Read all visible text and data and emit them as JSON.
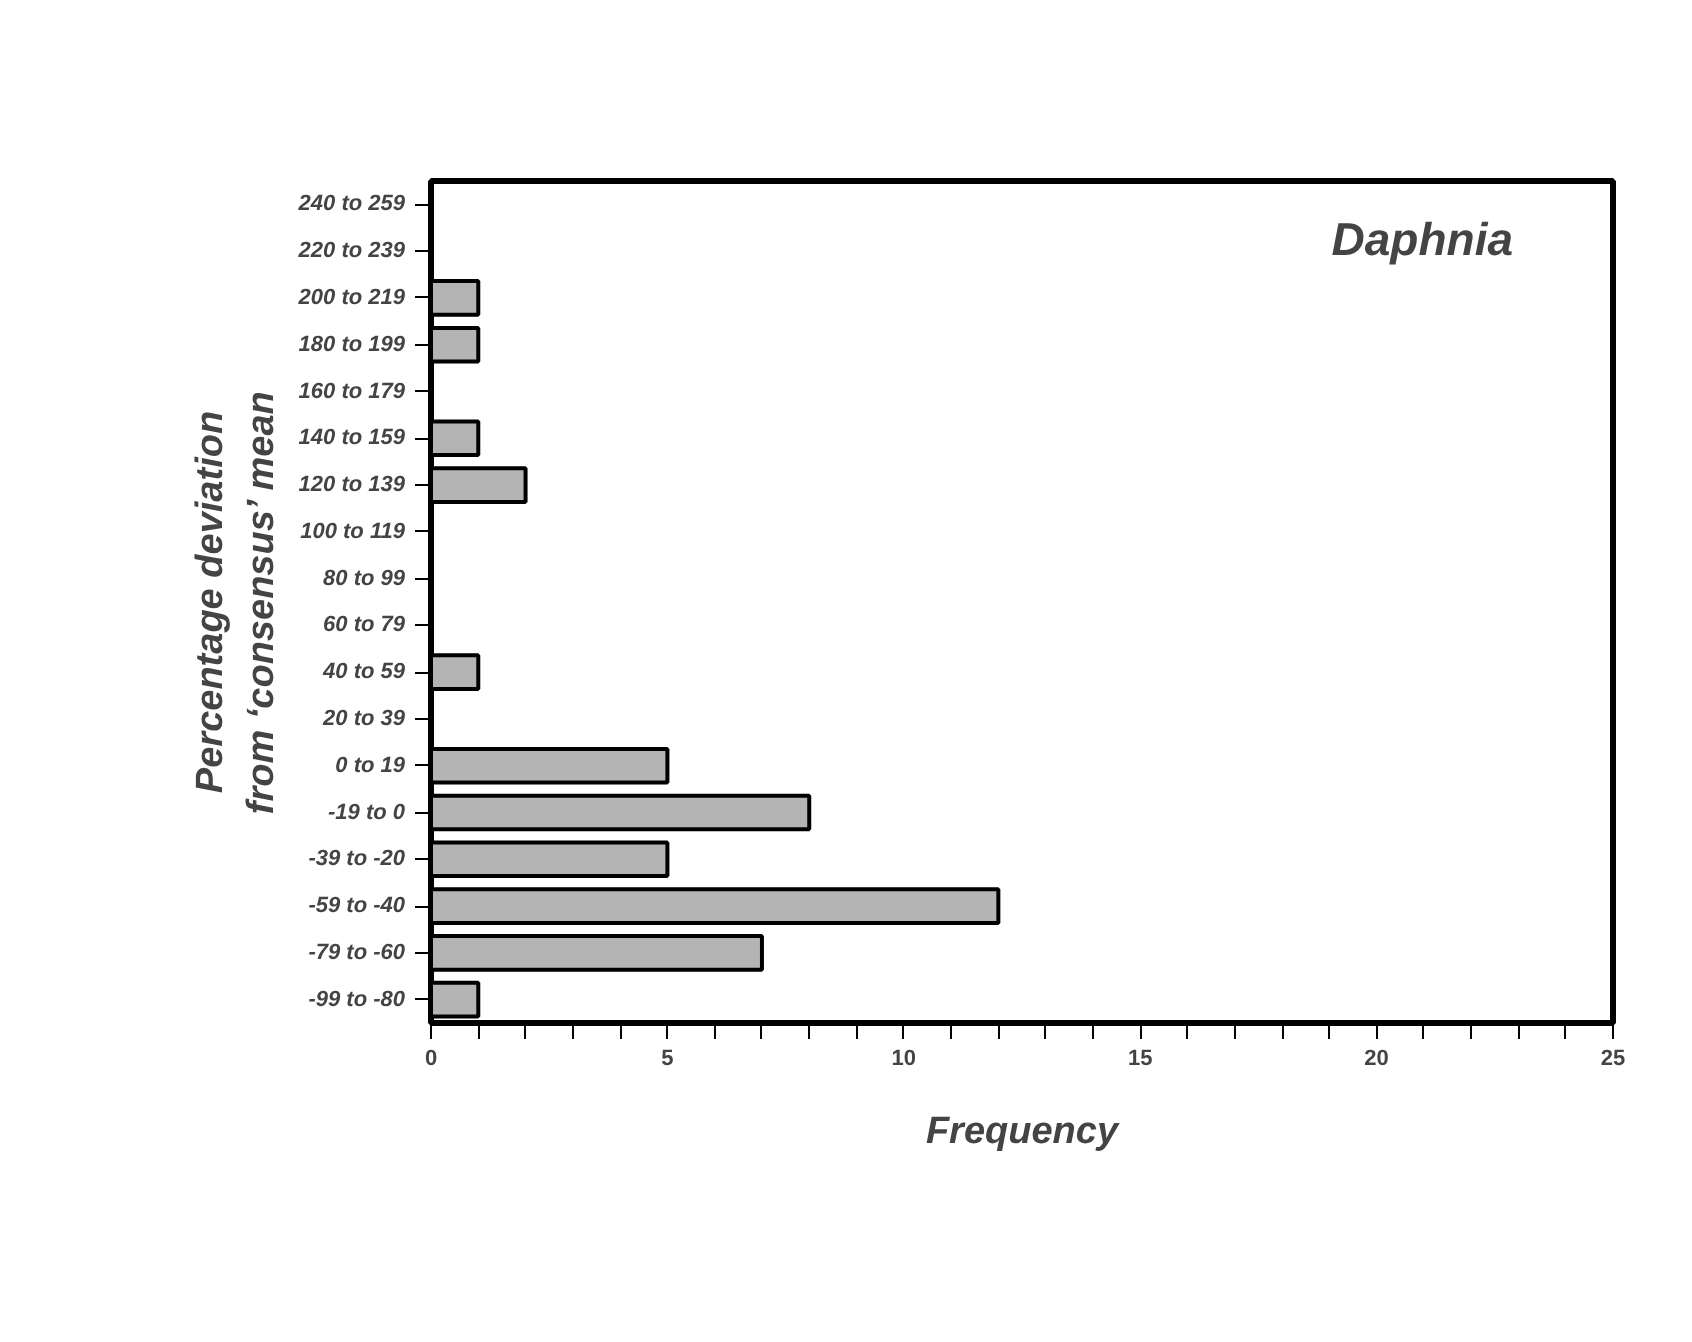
{
  "chart_data": {
    "type": "bar",
    "orientation": "horizontal",
    "xlabel": "Frequency",
    "ylabel": "Percentage deviation\nfrom ‘consensus’ mean",
    "annotations": [
      "Daphnia"
    ],
    "categories": [
      "240 to 259",
      "220 to 239",
      "200 to 219",
      "180 to 199",
      "160 to 179",
      "140 to 159",
      "120 to 139",
      "100 to 119",
      "80 to 99",
      "60 to 79",
      "40 to 59",
      "20 to 39",
      "0 to 19",
      "-19 to 0",
      "-39 to -20",
      "-59 to -40",
      "-79 to -60",
      "-99 to -80"
    ],
    "values": [
      0,
      0,
      1,
      1,
      0,
      1,
      2,
      0,
      0,
      0,
      1,
      0,
      5,
      8,
      5,
      12,
      7,
      1
    ],
    "color": "#b4b4b4",
    "xlim": [
      0,
      25
    ],
    "xticks": [
      0,
      {
        "value": 1,
        "label": null
      },
      {
        "value": 2,
        "label": null
      },
      {
        "value": 3,
        "label": null
      },
      {
        "value": 4,
        "label": null
      },
      5,
      {
        "value": 6,
        "label": null
      },
      {
        "value": 7,
        "label": null
      },
      {
        "value": 8,
        "label": null
      },
      {
        "value": 9,
        "label": null
      },
      10,
      {
        "value": 11,
        "label": null
      },
      {
        "value": 12,
        "label": null
      },
      {
        "value": 13,
        "label": null
      },
      {
        "value": 14,
        "label": null
      },
      15,
      {
        "value": 16,
        "label": null
      },
      {
        "value": 17,
        "label": null
      },
      {
        "value": 18,
        "label": null
      },
      {
        "value": 19,
        "label": null
      },
      20,
      {
        "value": 21,
        "label": null
      },
      {
        "value": 22,
        "label": null
      },
      {
        "value": 23,
        "label": null
      },
      {
        "value": 24,
        "label": null
      },
      25
    ],
    "grid": false
  }
}
